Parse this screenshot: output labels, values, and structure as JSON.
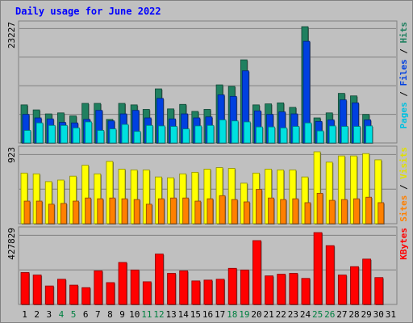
{
  "chart_data": {
    "type": "bar",
    "title": "Daily usage for June 2022",
    "categories": [
      "1",
      "2",
      "3",
      "4",
      "5",
      "6",
      "7",
      "8",
      "9",
      "10",
      "11",
      "12",
      "13",
      "14",
      "15",
      "16",
      "17",
      "18",
      "19",
      "20",
      "21",
      "22",
      "23",
      "24",
      "25",
      "26",
      "27",
      "28",
      "29",
      "30",
      "31"
    ],
    "weekend_categories": [
      "4",
      "5",
      "11",
      "12",
      "18",
      "19",
      "25",
      "26"
    ],
    "panels": [
      {
        "id": "hits-files-pages",
        "ymax_label": "23227",
        "ymax": 23227,
        "side_labels": [
          {
            "text": "Pages",
            "color": "#00c0e0"
          },
          {
            "text": " / ",
            "color": "#000000"
          },
          {
            "text": "Files",
            "color": "#0040e0"
          },
          {
            "text": " / ",
            "color": "#000000"
          },
          {
            "text": "Hits",
            "color": "#208060"
          }
        ],
        "series": [
          {
            "name": "Hits",
            "color": "#208060",
            "values": [
              7600,
              6600,
              5800,
              6000,
              5400,
              7900,
              7900,
              4700,
              7900,
              7600,
              6700,
              10800,
              6800,
              7700,
              6300,
              6700,
              11600,
              11300,
              16600,
              7600,
              7800,
              8000,
              7100,
              23227,
              5000,
              6000,
              9900,
              9400,
              5700,
              0,
              0
            ]
          },
          {
            "name": "Files",
            "color": "#0040e0",
            "values": [
              5700,
              5000,
              4800,
              4100,
              4000,
              4700,
              6500,
              4400,
              5800,
              6500,
              5000,
              8900,
              4800,
              5800,
              5000,
              5200,
              9600,
              9300,
              14400,
              6400,
              5700,
              6200,
              5800,
              20300,
              4300,
              4600,
              8600,
              8000,
              4600,
              0,
              0
            ]
          },
          {
            "name": "Pages",
            "color": "#00e0e0",
            "values": [
              2500,
              4000,
              3500,
              3500,
              3000,
              4200,
              2500,
              2800,
              3700,
              2300,
              3500,
              3400,
              3300,
              2800,
              3400,
              3500,
              4600,
              4400,
              4200,
              3200,
              3200,
              3000,
              3300,
              4000,
              2400,
              3400,
              3300,
              3300,
              3400,
              0,
              0
            ]
          }
        ]
      },
      {
        "id": "visits-sites",
        "ymax_label": "923",
        "ymax": 923,
        "side_labels": [
          {
            "text": "Sites",
            "color": "#ff8000"
          },
          {
            "text": " / ",
            "color": "#000000"
          },
          {
            "text": "Visits",
            "color": "#e0e000"
          }
        ],
        "series": [
          {
            "name": "Visits",
            "color": "#ffff00",
            "values": [
              650,
              640,
              540,
              560,
              610,
              750,
              640,
              800,
              700,
              690,
              690,
              600,
              590,
              640,
              660,
              700,
              720,
              710,
              520,
              650,
              700,
              690,
              690,
              600,
              923,
              790,
              870,
              870,
              900,
              820,
              0
            ]
          },
          {
            "name": "Sites",
            "color": "#ff8000",
            "values": [
              290,
              290,
              250,
              260,
              290,
              330,
              320,
              330,
              320,
              310,
              250,
              320,
              330,
              330,
              290,
              320,
              360,
              310,
              280,
              440,
              330,
              310,
              320,
              270,
              390,
              300,
              310,
              320,
              340,
              270,
              0
            ]
          }
        ]
      },
      {
        "id": "kbytes",
        "ymax_label": "427829",
        "ymax": 427829,
        "side_labels": [
          {
            "text": "KBytes",
            "color": "#ff0000"
          }
        ],
        "series": [
          {
            "name": "KBytes",
            "color": "#ff0000",
            "values": [
              190000,
              175000,
              110000,
              150000,
              115000,
              100000,
              200000,
              130000,
              250000,
              205000,
              135000,
              300000,
              185000,
              200000,
              140000,
              145000,
              150000,
              215000,
              205000,
              380000,
              170000,
              180000,
              185000,
              155000,
              427829,
              350000,
              175000,
              225000,
              270000,
              160000,
              0
            ]
          }
        ]
      }
    ]
  }
}
